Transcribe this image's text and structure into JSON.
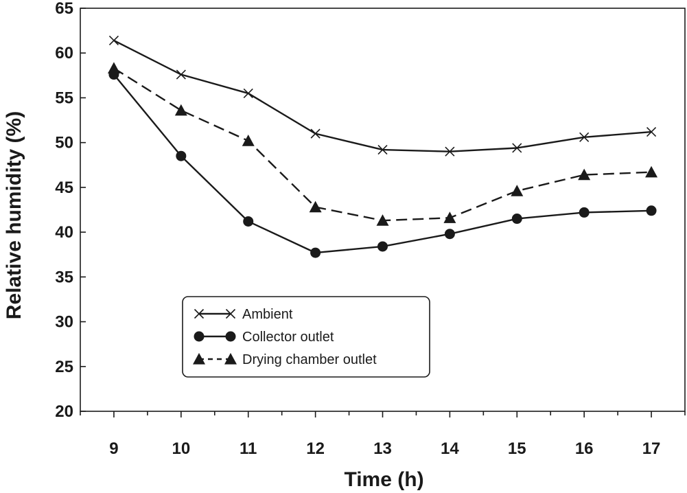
{
  "chart_data": {
    "type": "line",
    "title": "",
    "xlabel": "Time (h)",
    "ylabel": "Relative humidity (%)",
    "x": [
      9,
      10,
      11,
      12,
      13,
      14,
      15,
      16,
      17
    ],
    "xlim": [
      8.5,
      17.5
    ],
    "ylim": [
      20,
      65
    ],
    "yticks": [
      20,
      25,
      30,
      35,
      40,
      45,
      50,
      55,
      60,
      65
    ],
    "xticks": [
      9,
      10,
      11,
      12,
      13,
      14,
      15,
      16,
      17
    ],
    "grid": false,
    "legend_position": "bottom-left",
    "series": [
      {
        "name": "Ambient",
        "marker": "x",
        "line": "solid",
        "color": "#1a1a1a",
        "values": [
          61.4,
          57.6,
          55.5,
          51.0,
          49.2,
          49.0,
          49.4,
          50.6,
          51.2
        ]
      },
      {
        "name": "Collector outlet",
        "marker": "circle",
        "line": "solid",
        "color": "#1a1a1a",
        "values": [
          57.6,
          48.5,
          41.2,
          37.7,
          38.4,
          39.8,
          41.5,
          42.2,
          42.4
        ]
      },
      {
        "name": "Drying chamber outlet",
        "marker": "triangle",
        "line": "dashed",
        "color": "#1a1a1a",
        "values": [
          58.3,
          53.6,
          50.2,
          42.8,
          41.3,
          41.6,
          44.6,
          46.4,
          46.7
        ]
      }
    ]
  }
}
